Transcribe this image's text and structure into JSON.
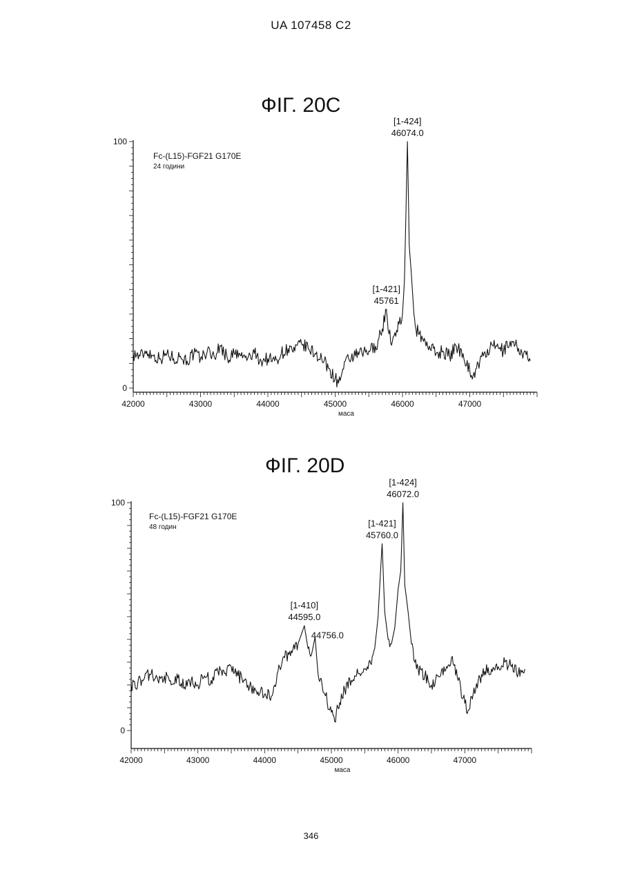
{
  "header": {
    "text": "UA   107458   C2"
  },
  "footer": {
    "page_number": "346"
  },
  "chart_data": [
    {
      "id": "fig-20c",
      "type": "line",
      "title": "ФІГ. 20C",
      "legend": {
        "name": "Fc-(L15)-FGF21 G170E",
        "condition": "24 години",
        "placement": "top-left"
      },
      "xlabel": "маса",
      "ylabel": "",
      "xlim": [
        42000,
        48000
      ],
      "ylim": [
        0,
        100
      ],
      "x_ticks": [
        42000,
        43000,
        44000,
        45000,
        46000,
        47000
      ],
      "y_ticks": [
        0,
        100
      ],
      "annotations": [
        {
          "x": 46074.0,
          "y": 100,
          "label": "[1-424]",
          "value": "46074.0"
        },
        {
          "x": 45761,
          "y": 32,
          "label": "[1-421]",
          "value": "45761"
        }
      ],
      "series": [
        {
          "x": [
            42000,
            42100,
            42200,
            42300,
            42400,
            42500,
            42600,
            42700,
            42800,
            42900,
            43000,
            43100,
            43200,
            43300,
            43400,
            43500,
            43600,
            43700,
            43800,
            43900,
            44000,
            44100,
            44200,
            44300,
            44400,
            44500,
            44600,
            44700,
            44800,
            44900,
            45000,
            45050,
            45100,
            45200,
            45300,
            45400,
            45500,
            45600,
            45650,
            45700,
            45761,
            45800,
            45850,
            45900,
            45950,
            46000,
            46030,
            46074,
            46100,
            46130,
            46170,
            46200,
            46250,
            46300,
            46400,
            46500,
            46600,
            46700,
            46800,
            46900,
            47000,
            47050,
            47100,
            47200,
            47300,
            47400,
            47500,
            47600,
            47700,
            47800,
            47900
          ],
          "values": [
            14,
            13,
            15,
            13,
            12,
            14,
            12,
            13,
            11,
            14,
            12,
            15,
            13,
            17,
            12,
            14,
            13,
            12,
            14,
            11,
            12,
            11,
            14,
            16,
            15,
            18,
            16,
            14,
            12,
            8,
            4,
            2,
            6,
            12,
            13,
            14,
            15,
            17,
            20,
            24,
            32,
            22,
            19,
            21,
            26,
            30,
            44,
            100,
            58,
            47,
            30,
            24,
            22,
            20,
            17,
            14,
            15,
            13,
            17,
            14,
            7,
            5,
            8,
            13,
            16,
            17,
            15,
            19,
            17,
            14,
            11
          ]
        }
      ]
    },
    {
      "id": "fig-20d",
      "type": "line",
      "title": "ФІГ. 20D",
      "legend": {
        "name": "Fc-(L15)-FGF21 G170E",
        "condition": "48 годин",
        "placement": "top-left"
      },
      "xlabel": "маса",
      "ylabel": "",
      "xlim": [
        42000,
        48000
      ],
      "ylim": [
        0,
        100
      ],
      "x_ticks": [
        42000,
        43000,
        44000,
        45000,
        46000,
        47000
      ],
      "y_ticks": [
        0,
        100
      ],
      "annotations": [
        {
          "x": 44595.0,
          "y": 46,
          "label": "[1-410]",
          "value": "44595.0"
        },
        {
          "x": 44756.0,
          "y": 41,
          "label": "",
          "value": "44756.0"
        },
        {
          "x": 45760.0,
          "y": 82,
          "label": "[1-421]",
          "value": "45760.0"
        },
        {
          "x": 46072.0,
          "y": 100,
          "label": "[1-424]",
          "value": "46072.0"
        }
      ],
      "series": [
        {
          "x": [
            42000,
            42100,
            42200,
            42300,
            42400,
            42500,
            42600,
            42700,
            42800,
            42900,
            43000,
            43100,
            43200,
            43300,
            43400,
            43500,
            43600,
            43700,
            43800,
            43900,
            44000,
            44100,
            44200,
            44300,
            44400,
            44500,
            44595,
            44650,
            44700,
            44756,
            44800,
            44900,
            45000,
            45050,
            45100,
            45200,
            45300,
            45400,
            45500,
            45600,
            45650,
            45700,
            45760,
            45800,
            45850,
            45900,
            45950,
            46000,
            46040,
            46072,
            46100,
            46150,
            46200,
            46250,
            46300,
            46400,
            46500,
            46600,
            46700,
            46800,
            46900,
            47000,
            47050,
            47100,
            47200,
            47300,
            47400,
            47500,
            47600,
            47700,
            47800,
            47900
          ],
          "values": [
            20,
            21,
            23,
            25,
            22,
            24,
            20,
            23,
            19,
            22,
            20,
            24,
            22,
            26,
            25,
            28,
            24,
            22,
            19,
            17,
            16,
            15,
            26,
            32,
            35,
            38,
            46,
            36,
            33,
            41,
            25,
            16,
            8,
            4,
            10,
            18,
            22,
            25,
            27,
            29,
            36,
            50,
            82,
            52,
            40,
            38,
            45,
            62,
            70,
            100,
            64,
            52,
            38,
            30,
            27,
            24,
            20,
            24,
            26,
            32,
            22,
            12,
            9,
            15,
            22,
            26,
            27,
            28,
            30,
            28,
            25,
            27
          ]
        }
      ]
    }
  ]
}
